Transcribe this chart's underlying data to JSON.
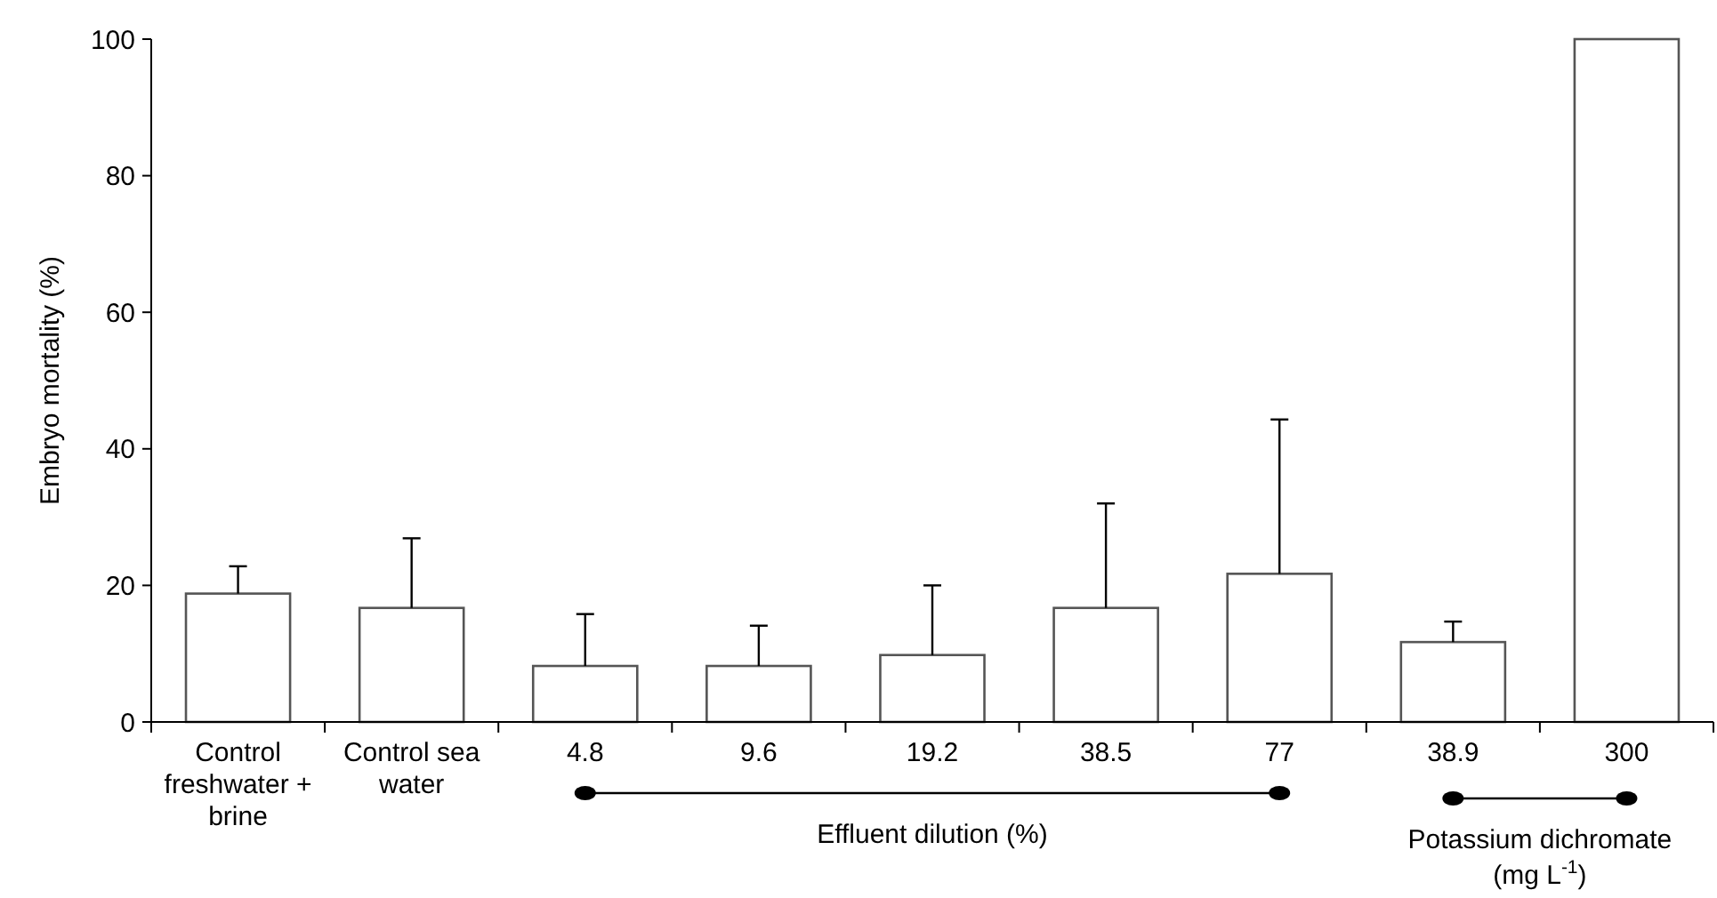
{
  "chart_data": {
    "type": "bar",
    "ylabel": "Embryo mortality (%)",
    "categories": [
      "Control freshwater + brine",
      "Control sea water",
      "4.8",
      "9.6",
      "19.2",
      "38.5",
      "77",
      "38.9",
      "300"
    ],
    "values": [
      18.8,
      16.7,
      8.2,
      8.2,
      9.8,
      16.7,
      21.7,
      11.7,
      100
    ],
    "errors": [
      [
        18.8,
        22.8
      ],
      [
        16.7,
        26.9
      ],
      [
        8.2,
        15.8
      ],
      [
        8.2,
        14.1
      ],
      [
        9.8,
        20
      ],
      [
        16.7,
        32
      ],
      [
        21.7,
        44.3
      ],
      [
        11.7,
        14.7
      ],
      null
    ],
    "color": "#ffffff",
    "ylim": [
      0,
      100
    ],
    "yticks": [
      0,
      20,
      40,
      60,
      80,
      100
    ],
    "grid": false,
    "annotations": [
      "Effluent dilution (%)",
      "Potassium dichromate (mg L$^{-1}$)"
    ]
  }
}
